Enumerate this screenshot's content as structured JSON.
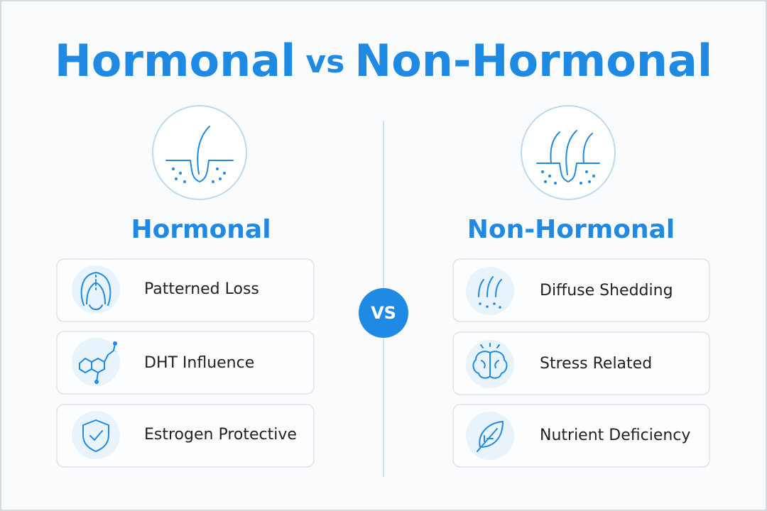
{
  "title": {
    "left": "Hormonal",
    "middle": "vs",
    "right": "Non-Hormonal"
  },
  "badge": "VS",
  "columns": [
    {
      "heading": "Hormonal",
      "items": [
        "Patterned Loss",
        "DHT Influence",
        "Estrogen Protective"
      ]
    },
    {
      "heading": "Non-Hormonal",
      "items": [
        "Diffuse Shedding",
        "Stress Related",
        "Nutrient Deficiency"
      ]
    }
  ]
}
